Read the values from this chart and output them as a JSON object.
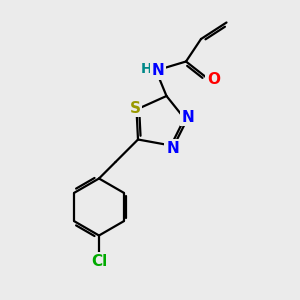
{
  "background_color": "#ebebeb",
  "bond_color": "#000000",
  "atom_colors": {
    "N": "#0000ff",
    "O": "#ff0000",
    "S": "#999900",
    "Cl": "#00aa00",
    "H": "#008888",
    "C": "#000000"
  },
  "bond_width": 1.6,
  "dbo": 0.09,
  "font_size_atoms": 11,
  "font_size_small": 9
}
